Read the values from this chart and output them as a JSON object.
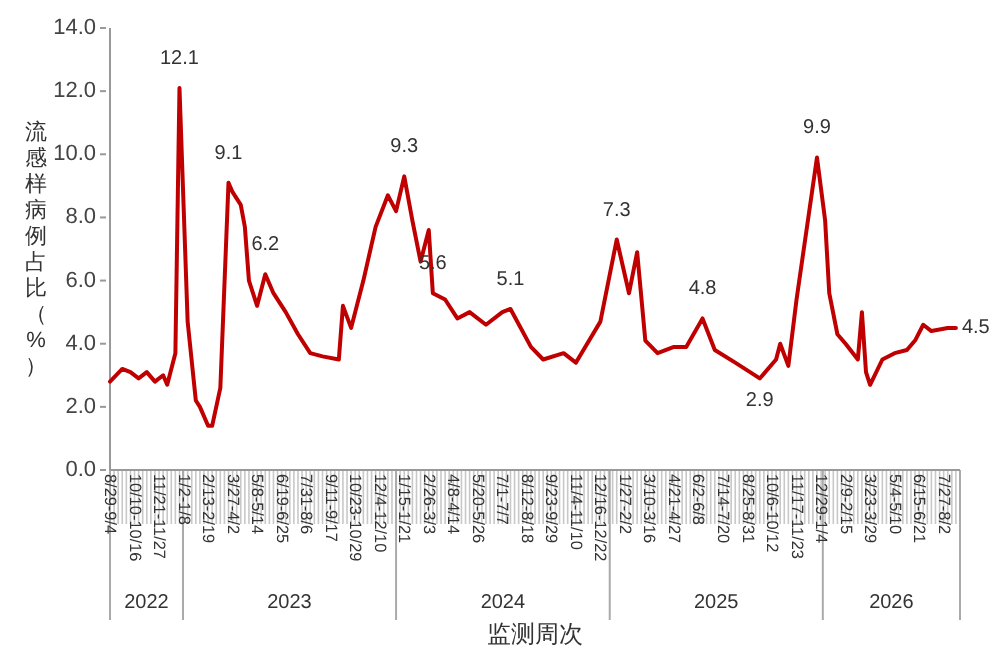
{
  "chart_data": {
    "type": "line",
    "xlabel": "监测周次",
    "ylabel": "流感样病例占比（%）",
    "color": "#c00000",
    "marker": "none",
    "line_style": "solid",
    "grid": false,
    "legend": false,
    "x": [
      "2022-08-29",
      "2022-09-19",
      "2022-10-03",
      "2022-10-17",
      "2022-10-31",
      "2022-11-14",
      "2022-11-28",
      "2022-12-05",
      "2022-12-19",
      "2022-12-26",
      "2023-01-09",
      "2023-01-23",
      "2023-01-30",
      "2023-02-13",
      "2023-02-20",
      "2023-03-06",
      "2023-03-20",
      "2023-03-27",
      "2023-04-10",
      "2023-04-17",
      "2023-04-24",
      "2023-05-08",
      "2023-05-22",
      "2023-06-05",
      "2023-06-26",
      "2023-07-17",
      "2023-08-07",
      "2023-08-28",
      "2023-09-25",
      "2023-10-02",
      "2023-10-16",
      "2023-11-06",
      "2023-11-27",
      "2023-12-18",
      "2024-01-01",
      "2024-01-15",
      "2024-01-29",
      "2024-02-12",
      "2024-02-26",
      "2024-03-04",
      "2024-03-25",
      "2024-04-15",
      "2024-05-06",
      "2024-06-03",
      "2024-07-01",
      "2024-07-15",
      "2024-08-19",
      "2024-09-09",
      "2024-10-14",
      "2024-11-04",
      "2024-12-16",
      "2025-01-13",
      "2025-02-03",
      "2025-02-17",
      "2025-03-03",
      "2025-03-24",
      "2025-04-21",
      "2025-05-12",
      "2025-06-09",
      "2025-06-30",
      "2025-08-04",
      "2025-09-15",
      "2025-10-13",
      "2025-10-20",
      "2025-11-03",
      "2025-11-17",
      "2025-12-08",
      "2025-12-22",
      "2026-01-05",
      "2026-01-12",
      "2026-01-26",
      "2026-02-09",
      "2026-03-02",
      "2026-03-09",
      "2026-03-16",
      "2026-03-23",
      "2026-04-13",
      "2026-05-04",
      "2026-05-25",
      "2026-06-08",
      "2026-06-22",
      "2026-07-06",
      "2026-08-03",
      "2026-08-17"
    ],
    "values": [
      2.8,
      3.2,
      3.1,
      2.9,
      3.1,
      2.8,
      3.0,
      2.7,
      3.7,
      12.1,
      4.7,
      2.2,
      2.0,
      1.4,
      1.4,
      2.6,
      9.1,
      8.8,
      8.4,
      7.7,
      6.0,
      5.2,
      6.2,
      5.6,
      5.0,
      4.3,
      3.7,
      3.6,
      3.5,
      5.2,
      4.5,
      6.0,
      7.7,
      8.7,
      8.2,
      9.3,
      7.9,
      6.6,
      7.6,
      5.6,
      5.4,
      4.8,
      5.0,
      4.6,
      5.0,
      5.1,
      3.9,
      3.5,
      3.7,
      3.4,
      4.7,
      7.3,
      5.6,
      6.9,
      4.1,
      3.7,
      3.9,
      3.9,
      4.8,
      3.8,
      3.4,
      2.9,
      3.5,
      4.0,
      3.3,
      5.4,
      8.1,
      9.9,
      7.9,
      5.6,
      4.3,
      4.0,
      3.5,
      5.0,
      3.1,
      2.7,
      3.5,
      3.7,
      3.8,
      4.1,
      4.6,
      4.4,
      4.5,
      4.5
    ],
    "value_labels": [
      null,
      null,
      null,
      null,
      null,
      null,
      null,
      null,
      null,
      "12.1",
      null,
      null,
      null,
      null,
      null,
      null,
      "9.1",
      null,
      null,
      null,
      null,
      null,
      "6.2",
      null,
      null,
      null,
      null,
      null,
      null,
      null,
      null,
      null,
      null,
      null,
      null,
      "9.3",
      null,
      null,
      null,
      "5.6",
      null,
      null,
      null,
      null,
      null,
      "5.1",
      null,
      null,
      null,
      null,
      null,
      "7.3",
      null,
      null,
      null,
      null,
      null,
      null,
      "4.8",
      null,
      null,
      "2.9",
      null,
      null,
      null,
      null,
      null,
      "9.9",
      null,
      null,
      null,
      null,
      null,
      null,
      null,
      null,
      null,
      null,
      null,
      null,
      null,
      null,
      null,
      "4.5"
    ],
    "xlim": [
      "2022-08-29",
      "2026-08-24"
    ],
    "xticks": [
      {
        "value": "2022-08-29",
        "label": "8/29-9/4"
      },
      {
        "value": "2022-10-10",
        "label": "10/10-10/16"
      },
      {
        "value": "2022-11-21",
        "label": "11/21-11/27"
      },
      {
        "value": "2023-01-02",
        "label": "1/2-1/8"
      },
      {
        "value": "2023-02-13",
        "label": "2/13-2/19"
      },
      {
        "value": "2023-03-27",
        "label": "3/27-4/2"
      },
      {
        "value": "2023-05-08",
        "label": "5/8-5/14"
      },
      {
        "value": "2023-06-19",
        "label": "6/19-6/25"
      },
      {
        "value": "2023-07-31",
        "label": "7/31-8/6"
      },
      {
        "value": "2023-09-11",
        "label": "9/11-9/17"
      },
      {
        "value": "2023-10-23",
        "label": "10/23-10/29"
      },
      {
        "value": "2023-12-04",
        "label": "12/4-12/10"
      },
      {
        "value": "2024-01-15",
        "label": "1/15-1/21"
      },
      {
        "value": "2024-02-26",
        "label": "2/26-3/3"
      },
      {
        "value": "2024-04-08",
        "label": "4/8-4/14"
      },
      {
        "value": "2024-05-20",
        "label": "5/20-5/26"
      },
      {
        "value": "2024-07-01",
        "label": "7/1-7/7"
      },
      {
        "value": "2024-08-12",
        "label": "8/12-8/18"
      },
      {
        "value": "2024-09-23",
        "label": "9/23-9/29"
      },
      {
        "value": "2024-11-04",
        "label": "11/4-11/10"
      },
      {
        "value": "2024-12-16",
        "label": "12/16-12/22"
      },
      {
        "value": "2025-01-27",
        "label": "1/27-2/2"
      },
      {
        "value": "2025-03-10",
        "label": "3/10-3/16"
      },
      {
        "value": "2025-04-21",
        "label": "4/21-4/27"
      },
      {
        "value": "2025-06-02",
        "label": "6/2-6/8"
      },
      {
        "value": "2025-07-14",
        "label": "7/14-7/20"
      },
      {
        "value": "2025-08-25",
        "label": "8/25-8/31"
      },
      {
        "value": "2025-10-06",
        "label": "10/6-10/12"
      },
      {
        "value": "2025-11-17",
        "label": "11/17-11/23"
      },
      {
        "value": "2025-12-29",
        "label": "12/29-1/4"
      },
      {
        "value": "2026-02-09",
        "label": "2/9-2/15"
      },
      {
        "value": "2026-03-23",
        "label": "3/23-3/29"
      },
      {
        "value": "2026-05-04",
        "label": "5/4-5/10"
      },
      {
        "value": "2026-06-15",
        "label": "6/15-6/21"
      },
      {
        "value": "2026-07-27",
        "label": "7/27-8/2"
      }
    ],
    "ylim": [
      0,
      14
    ],
    "yticks": [
      {
        "value": 0,
        "label": "0.0"
      },
      {
        "value": 2,
        "label": "2.0"
      },
      {
        "value": 4,
        "label": "4.0"
      },
      {
        "value": 6,
        "label": "6.0"
      },
      {
        "value": 8,
        "label": "8.0"
      },
      {
        "value": 10,
        "label": "10.0"
      },
      {
        "value": 12,
        "label": "12.0"
      },
      {
        "value": 14,
        "label": "14.0"
      }
    ],
    "annotations": [
      "2022",
      "2023",
      "2024",
      "2025",
      "2026"
    ]
  }
}
